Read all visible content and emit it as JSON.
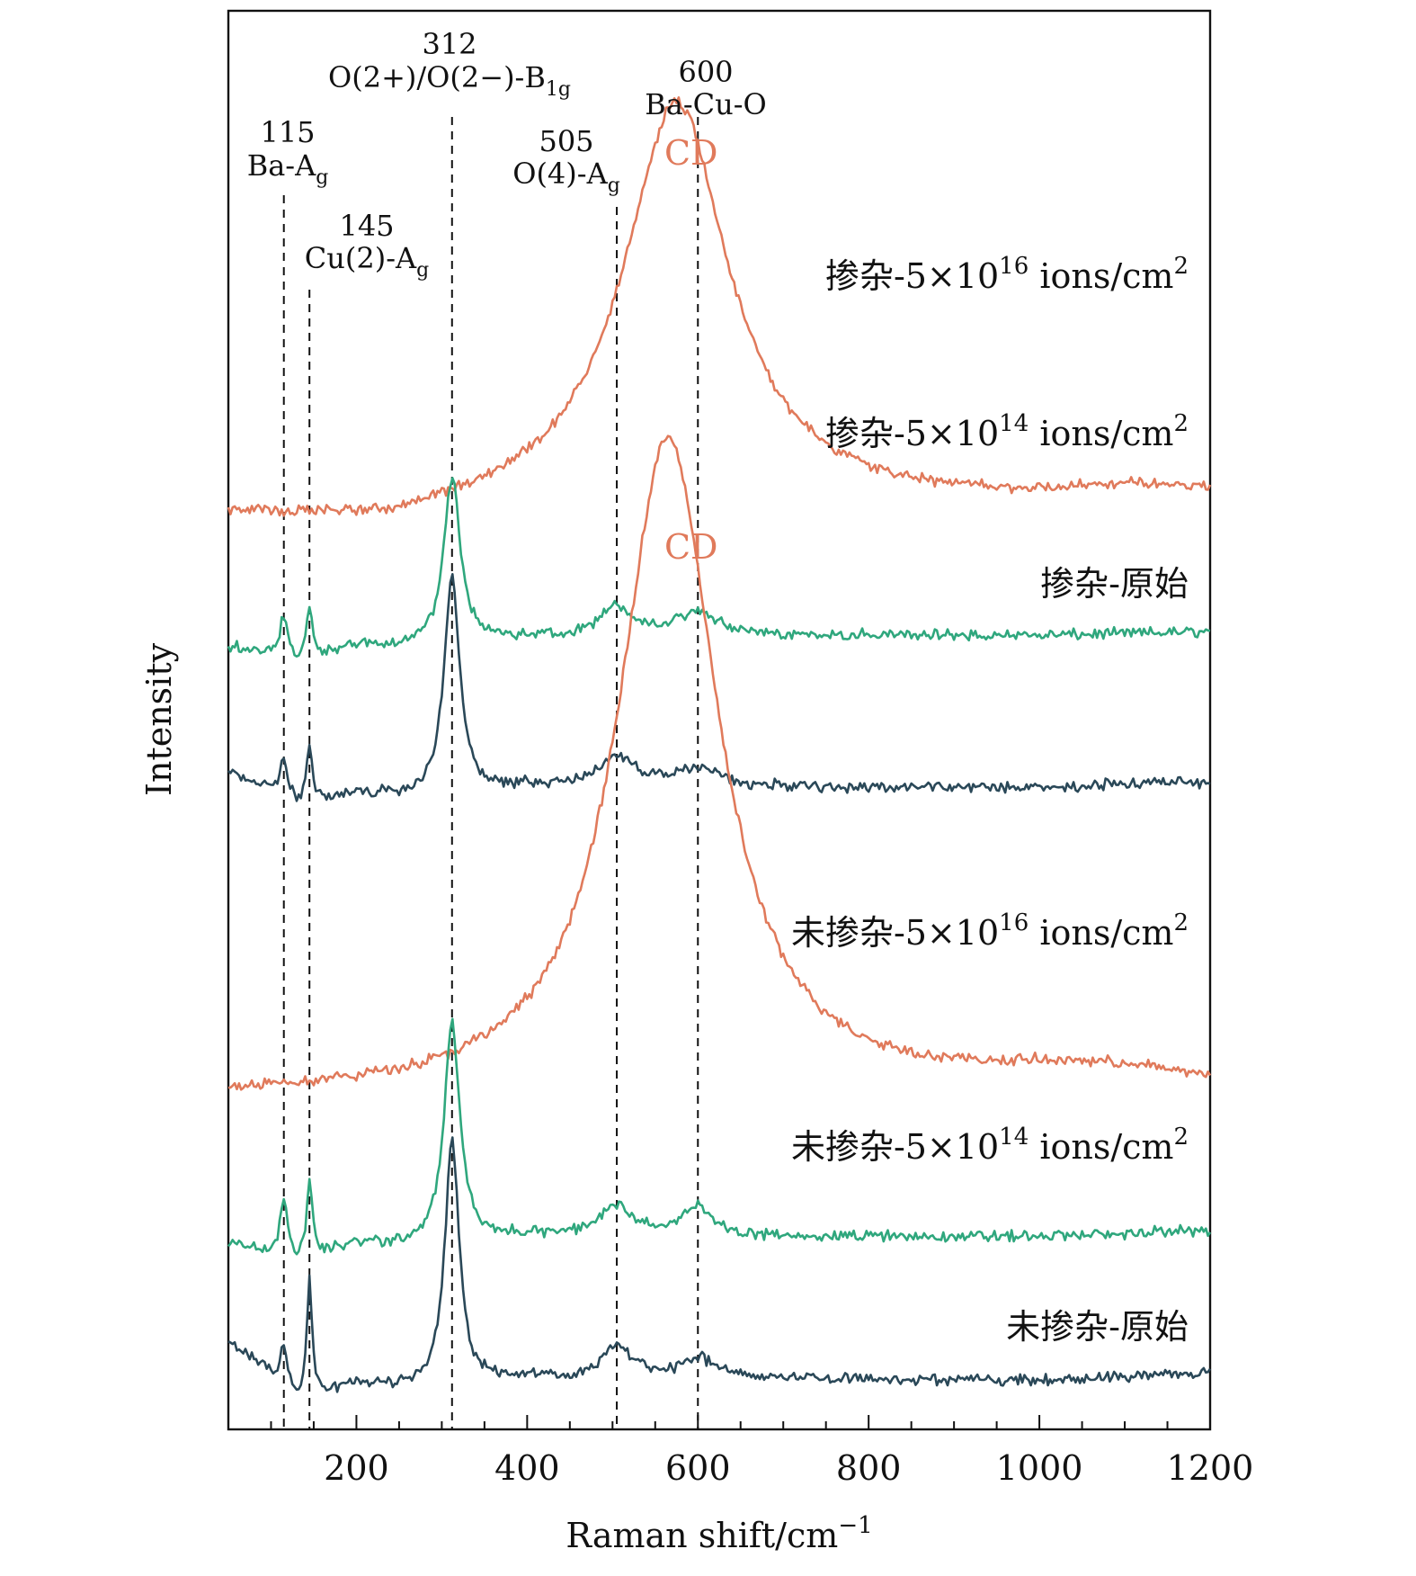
{
  "chart_data": {
    "type": "line",
    "xlabel": "Raman shift/cm",
    "xlabel_sup": "−1",
    "ylabel": "Intensity",
    "xlim": [
      50,
      1200
    ],
    "x_ticks": [
      200,
      400,
      600,
      800,
      1000,
      1200
    ],
    "x_minor_step": 50,
    "y_axis": "offset stacked spectra, arbitrary units",
    "colors": {
      "high_dose": "#e07a5b",
      "low_dose": "#2fa77d",
      "pristine": "#2a4858"
    },
    "series": [
      {
        "id": "s1",
        "name": "掺杂-5×10^16 ions/cm^2",
        "label_prefix": "掺杂-5×10",
        "label_exp": "16",
        "label_suffix": " ions/cm",
        "label_unit_exp": "2",
        "color_key": "high_dose",
        "offset": 4.2,
        "peaks": [
          [
            575,
            2.05,
            75
          ],
          [
            1110,
            0.08,
            150
          ]
        ],
        "baseline": [
          [
            50,
            0.0
          ],
          [
            150,
            -0.03
          ],
          [
            250,
            -0.05
          ],
          [
            330,
            0.0
          ],
          [
            450,
            0.05
          ],
          [
            700,
            0.05
          ],
          [
            1000,
            0.04
          ],
          [
            1200,
            0.07
          ]
        ],
        "cd_label": "CD",
        "cd_at": 590
      },
      {
        "id": "s2",
        "name": "掺杂-5×10^14 ions/cm^2",
        "label_prefix": "掺杂-5×10",
        "label_exp": "14",
        "label_suffix": " ions/cm",
        "label_unit_exp": "2",
        "color_key": "low_dose",
        "offset": 3.55,
        "peaks": [
          [
            115,
            0.22,
            5
          ],
          [
            145,
            0.25,
            4
          ],
          [
            312,
            0.85,
            12
          ],
          [
            505,
            0.15,
            25
          ],
          [
            600,
            0.12,
            30
          ]
        ],
        "baseline": [
          [
            50,
            0.0
          ],
          [
            130,
            -0.08
          ],
          [
            200,
            0.0
          ],
          [
            260,
            -0.02
          ],
          [
            400,
            0.03
          ],
          [
            700,
            0.05
          ],
          [
            1000,
            0.05
          ],
          [
            1200,
            0.07
          ]
        ]
      },
      {
        "id": "s3",
        "name": "掺杂-原始",
        "label_plain": "掺杂-原始",
        "color_key": "pristine",
        "offset": 2.8,
        "peaks": [
          [
            115,
            0.2,
            5
          ],
          [
            145,
            0.28,
            4
          ],
          [
            312,
            1.1,
            11
          ],
          [
            505,
            0.15,
            25
          ],
          [
            600,
            0.1,
            30
          ]
        ],
        "baseline": [
          [
            50,
            0.1
          ],
          [
            100,
            0.02
          ],
          [
            130,
            -0.06
          ],
          [
            200,
            0.0
          ],
          [
            260,
            -0.02
          ],
          [
            400,
            0.03
          ],
          [
            700,
            0.03
          ],
          [
            1000,
            0.03
          ],
          [
            1200,
            0.06
          ]
        ]
      },
      {
        "id": "s4",
        "name": "未掺杂-5×10^16 ions/cm^2",
        "label_prefix": "未掺杂-5×10",
        "label_exp": "16",
        "label_suffix": " ions/cm",
        "label_unit_exp": "2",
        "color_key": "high_dose",
        "offset": 1.25,
        "peaks": [
          [
            565,
            3.35,
            70
          ],
          [
            1110,
            0.1,
            150
          ]
        ],
        "baseline": [
          [
            50,
            0.0
          ],
          [
            300,
            0.0
          ],
          [
            700,
            0.0
          ],
          [
            1000,
            0.05
          ],
          [
            1200,
            0.0
          ]
        ],
        "cd_label": "CD",
        "cd_at": 590
      },
      {
        "id": "s5",
        "name": "未掺杂-5×10^14 ions/cm^2",
        "label_prefix": "未掺杂-5×10",
        "label_exp": "14",
        "label_suffix": " ions/cm",
        "label_unit_exp": "2",
        "color_key": "low_dose",
        "offset": 0.52,
        "peaks": [
          [
            115,
            0.3,
            5
          ],
          [
            145,
            0.4,
            4
          ],
          [
            312,
            1.12,
            11
          ],
          [
            505,
            0.15,
            25
          ],
          [
            600,
            0.16,
            18
          ]
        ],
        "baseline": [
          [
            50,
            0.0
          ],
          [
            130,
            -0.1
          ],
          [
            200,
            0.0
          ],
          [
            260,
            -0.02
          ],
          [
            400,
            0.03
          ],
          [
            700,
            0.03
          ],
          [
            1000,
            0.03
          ],
          [
            1200,
            0.06
          ]
        ]
      },
      {
        "id": "s6",
        "name": "未掺杂-原始",
        "label_plain": "未掺杂-原始",
        "color_key": "pristine",
        "offset": -0.2,
        "peaks": [
          [
            115,
            0.2,
            5
          ],
          [
            145,
            0.6,
            3.5
          ],
          [
            312,
            1.25,
            10
          ],
          [
            505,
            0.17,
            20
          ],
          [
            600,
            0.1,
            25
          ]
        ],
        "baseline": [
          [
            50,
            0.22
          ],
          [
            100,
            0.05
          ],
          [
            130,
            -0.08
          ],
          [
            200,
            0.0
          ],
          [
            260,
            -0.02
          ],
          [
            400,
            0.03
          ],
          [
            700,
            0.03
          ],
          [
            1000,
            0.02
          ],
          [
            1200,
            0.06
          ]
        ]
      }
    ],
    "reference_lines": [
      {
        "x": 115,
        "value": "115",
        "mode_prefix": "Ba-A",
        "mode_sub": "g"
      },
      {
        "x": 145,
        "value": "145",
        "mode_prefix": "Cu(2)-A",
        "mode_sub": "g"
      },
      {
        "x": 312,
        "value": "312",
        "mode_prefix": "O(2+)/O(2−)-B",
        "mode_sub": "1g"
      },
      {
        "x": 505,
        "value": "505",
        "mode_prefix": "O(4)-A",
        "mode_sub": "g"
      },
      {
        "x": 600,
        "value": "600",
        "mode_prefix": "Ba-Cu-O",
        "mode_sub": ""
      }
    ]
  }
}
